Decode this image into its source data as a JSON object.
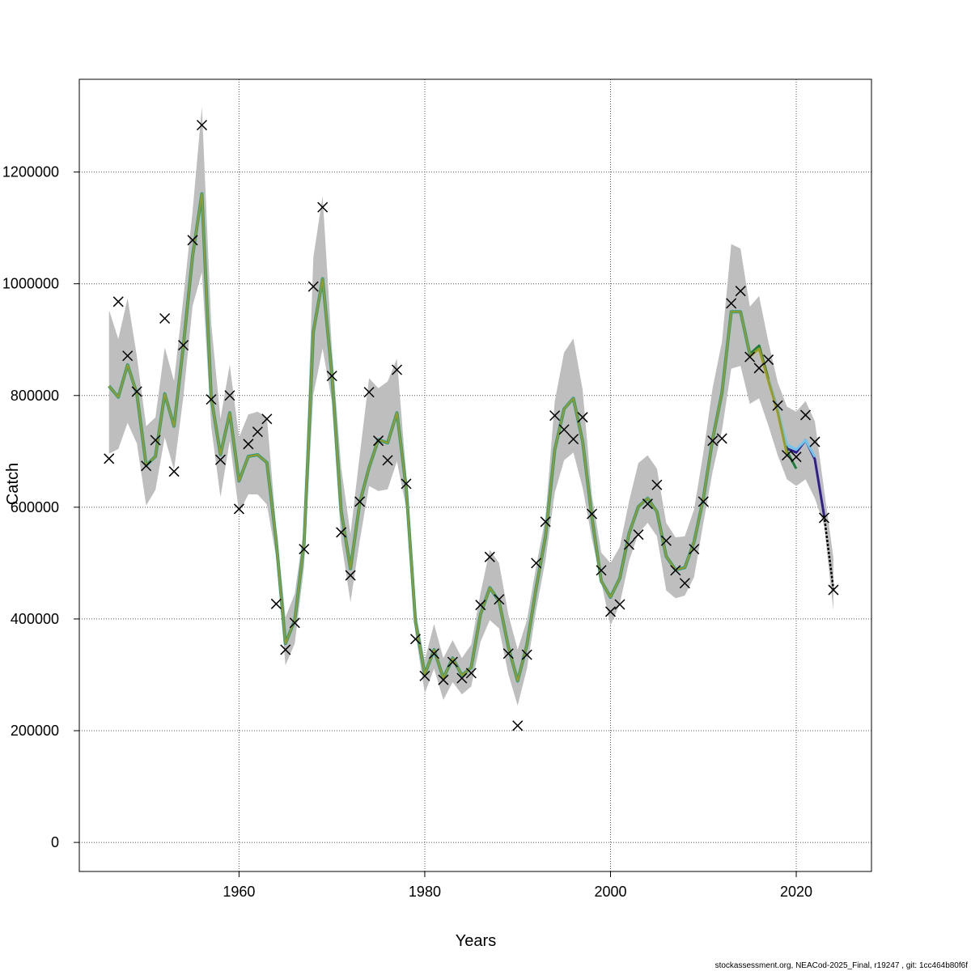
{
  "chart_data": {
    "type": "line",
    "title": "",
    "xlabel": "Years",
    "ylabel": "Catch",
    "xlim": [
      1942.8,
      2028.1
    ],
    "ylim": [
      -52000,
      1366000
    ],
    "x_ticks": [
      1960,
      1980,
      2000,
      2020
    ],
    "y_ticks": [
      0,
      200000,
      400000,
      600000,
      800000,
      1000000,
      1200000
    ],
    "grid": true,
    "colors": {
      "band": "#bebebe",
      "fit": "#9c9c1c",
      "fit_under": "#2a9d8f",
      "final": "#2e1f8c",
      "green_peel": "#1a7f3a",
      "lightblue_peel": "#6ec6f0",
      "obs": "#000000"
    },
    "years_start": 1946,
    "fitted": [
      817,
      797,
      855,
      803,
      675,
      691,
      803,
      745,
      888,
      1050,
      1161,
      797,
      694,
      769,
      647,
      691,
      694,
      680,
      540,
      356,
      398,
      534,
      914,
      1009,
      837,
      593,
      490,
      608,
      671,
      721,
      715,
      769,
      635,
      395,
      301,
      345,
      294,
      330,
      299,
      313,
      408,
      456,
      432,
      350,
      289,
      354,
      456,
      548,
      703,
      776,
      795,
      718,
      582,
      468,
      439,
      473,
      553,
      601,
      616,
      592,
      512,
      488,
      492,
      538,
      616,
      722,
      805,
      950,
      950,
      874,
      889,
      829,
      775,
      705,
      698,
      720,
      686,
      585,
      454
    ],
    "upper": [
      953,
      901,
      974,
      870,
      745,
      761,
      886,
      826,
      974,
      1130,
      1317,
      930,
      758,
      855,
      725,
      766,
      771,
      761,
      564,
      403,
      445,
      564,
      1047,
      1157,
      884,
      671,
      552,
      694,
      831,
      813,
      825,
      866,
      659,
      415,
      326,
      391,
      330,
      362,
      330,
      354,
      446,
      524,
      500,
      408,
      345,
      398,
      495,
      582,
      790,
      877,
      902,
      810,
      621,
      519,
      500,
      529,
      611,
      679,
      693,
      669,
      572,
      546,
      548,
      596,
      698,
      814,
      896,
      1071,
      1063,
      959,
      978,
      896,
      824,
      780,
      771,
      790,
      754,
      631,
      510
    ],
    "lower": [
      696,
      704,
      751,
      714,
      603,
      631,
      725,
      667,
      797,
      960,
      1021,
      745,
      618,
      719,
      590,
      623,
      623,
      605,
      510,
      317,
      356,
      493,
      801,
      884,
      789,
      540,
      430,
      540,
      638,
      629,
      632,
      682,
      599,
      374,
      267,
      311,
      255,
      287,
      265,
      279,
      359,
      398,
      383,
      301,
      245,
      311,
      417,
      505,
      626,
      684,
      698,
      635,
      543,
      466,
      388,
      427,
      504,
      553,
      572,
      548,
      451,
      437,
      442,
      475,
      572,
      664,
      737,
      848,
      853,
      785,
      795,
      746,
      693,
      650,
      638,
      650,
      616,
      568,
      415
    ],
    "observed": [
      687,
      968,
      871,
      807,
      674,
      720,
      938,
      664,
      890,
      1078,
      1284,
      793,
      685,
      800,
      597,
      713,
      735,
      758,
      427,
      345,
      393,
      525,
      995,
      1137,
      835,
      555,
      478,
      610,
      806,
      719,
      684,
      846,
      642,
      364,
      298,
      338,
      291,
      323,
      294,
      303,
      425,
      511,
      435,
      338,
      209,
      336,
      500,
      574,
      764,
      739,
      722,
      761,
      588,
      487,
      413,
      426,
      533,
      551,
      606,
      640,
      540,
      487,
      464,
      525,
      610,
      719,
      723,
      965,
      987,
      869,
      849,
      864,
      782,
      693,
      690,
      765,
      717,
      581,
      452
    ],
    "value_unit_multiplier": 1000,
    "peels": [
      {
        "color_key": "green_peel",
        "years": [
          2015,
          2016,
          2017,
          2018,
          2019,
          2020
        ],
        "values": [
          874,
          889,
          829,
          772,
          700,
          669
        ]
      },
      {
        "color_key": "lightblue_peel",
        "years": [
          2017,
          2018,
          2019,
          2020,
          2021,
          2022
        ],
        "values": [
          829,
          775,
          712,
          703,
          720,
          690
        ]
      },
      {
        "color_key": "fit",
        "years": [
          2015,
          2016,
          2017,
          2018,
          2019
        ],
        "values": [
          870,
          884,
          826,
          770,
          695
        ]
      }
    ],
    "final_run": {
      "years": [
        2014,
        2015,
        2016,
        2017,
        2018,
        2019,
        2020,
        2021,
        2022,
        2023
      ],
      "values": [
        950,
        874,
        889,
        829,
        775,
        705,
        698,
        720,
        686,
        585
      ]
    },
    "last_year_dashed": {
      "years": [
        2023,
        2024
      ],
      "values": [
        585,
        454
      ]
    }
  },
  "footer": "stockassessment.org, NEACod-2025_Final, r19247 , git: 1cc464b80f6f"
}
